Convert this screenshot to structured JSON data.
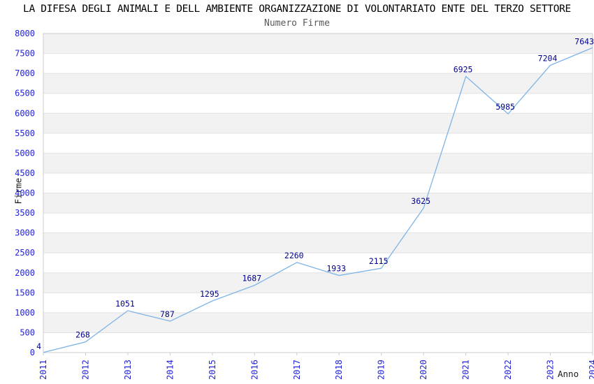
{
  "title": "LA DIFESA DEGLI ANIMALI E DELL AMBIENTE ORGANIZZAZIONE DI VOLONTARIATO ENTE DEL TERZO SETTORE",
  "subtitle": "Numero Firme",
  "chart_data": {
    "type": "line",
    "x": [
      2011,
      2012,
      2013,
      2014,
      2015,
      2016,
      2017,
      2018,
      2019,
      2020,
      2021,
      2022,
      2023,
      2024
    ],
    "values": [
      4,
      268,
      1051,
      787,
      1295,
      1687,
      2260,
      1933,
      2115,
      3625,
      6925,
      5985,
      7204,
      7643
    ],
    "title": "LA DIFESA DEGLI ANIMALI E DELL AMBIENTE ORGANIZZAZIONE DI VOLONTARIATO ENTE DEL TERZO SETTORE",
    "subtitle": "Numero Firme",
    "xlabel": "Anno",
    "ylabel": "Firme",
    "ylim": [
      0,
      8000
    ],
    "ytick_step": 500,
    "grid": true,
    "plot_bands": "alternating horizontal 500-unit bands",
    "legend": "none",
    "data_labels": true,
    "colors": {
      "line": "#7eb4e6",
      "data_label": "#00008b",
      "tick_label": "#2323d7",
      "subtitle": "#595959",
      "band_fill": "#f2f2f2",
      "gridline": "#e3e3e3",
      "plot_border": "#cccccc",
      "background": "#ffffff"
    }
  }
}
